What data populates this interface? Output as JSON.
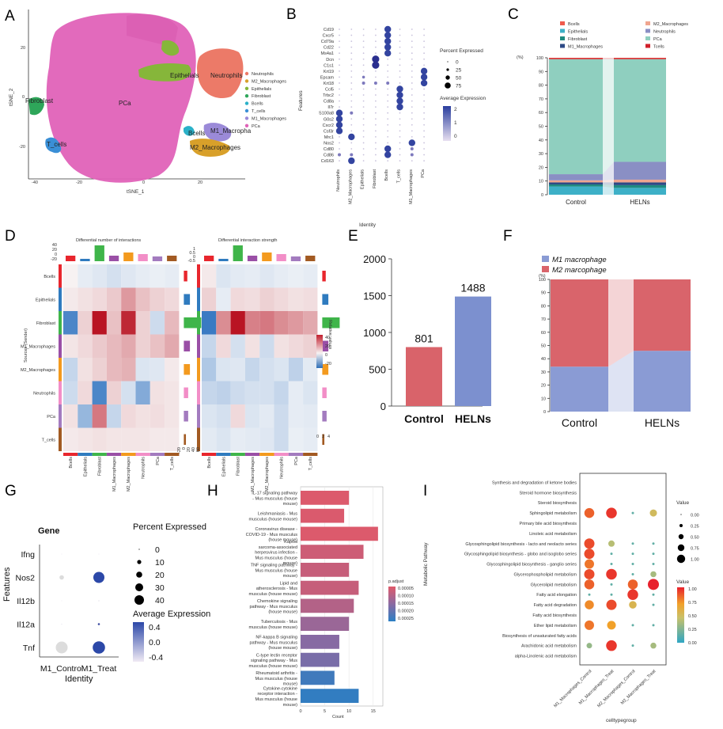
{
  "panels": {
    "A": {
      "label": "A",
      "xlabel": "tSNE_1",
      "ylabel": "tSNE_2",
      "x_ticks": [
        "-40",
        "-20",
        "0",
        "20"
      ],
      "y_ticks": [
        "20",
        "0",
        "-20"
      ],
      "cluster_labels": [
        "Epithelials",
        "Neutrophils",
        "Fibroblast",
        "PCa",
        "T_cells",
        "Bcells",
        "M1_Macropha",
        "M2_Macrophages"
      ],
      "legend": [
        {
          "name": "Neutrophils",
          "color": "#ec7a68"
        },
        {
          "name": "M2_Macrophages",
          "color": "#d8a02a"
        },
        {
          "name": "Epithelials",
          "color": "#86b63a"
        },
        {
          "name": "Fibroblast",
          "color": "#2ea65a"
        },
        {
          "name": "Bcells",
          "color": "#2ab1c8"
        },
        {
          "name": "T_cells",
          "color": "#3a8fd6"
        },
        {
          "name": "M1_Macrophages",
          "color": "#9b8ad8"
        },
        {
          "name": "PCa",
          "color": "#e062b8"
        }
      ]
    },
    "B": {
      "label": "B",
      "ylabel": "Features",
      "xlabel": "Identity",
      "features": [
        "Cd19",
        "Cxcr5",
        "Cd79a",
        "Cd22",
        "Ms4a1",
        "Dcn",
        "C1s1",
        "Krt19",
        "Epcam",
        "Krt18",
        "Ccl5",
        "Trbc2",
        "Cd8a",
        "Il7r",
        "S100a8",
        "G0s2",
        "Cxcr2",
        "Csf3r",
        "Mrc1",
        "Nos2",
        "Cd80",
        "Cd86",
        "Cd163"
      ],
      "identities": [
        "Neutrophils",
        "M2_Macrophages",
        "Epithelials",
        "Fibroblast",
        "Bcells",
        "T_cells",
        "M1_Macrophages",
        "PCa"
      ],
      "pct_title": "Percent Expressed",
      "pct_ticks": [
        "0",
        "25",
        "50",
        "75"
      ],
      "avg_title": "Average Expression",
      "avg_ticks": [
        "2",
        "1",
        "0"
      ]
    },
    "C": {
      "label": "C",
      "unit": "(%)",
      "y_ticks": [
        "100",
        "90",
        "80",
        "70",
        "60",
        "50",
        "40",
        "30",
        "20",
        "10",
        "0"
      ],
      "legend": [
        {
          "name": "Bcells",
          "color": "#ef5a4c"
        },
        {
          "name": "Epithelials",
          "color": "#3db0c7"
        },
        {
          "name": "Fibroblast",
          "color": "#1f8a80"
        },
        {
          "name": "M1_Macrophages",
          "color": "#2d4a86"
        },
        {
          "name": "M2_Macrophages",
          "color": "#f0a58f"
        },
        {
          "name": "Neutrophils",
          "color": "#8a8fc4"
        },
        {
          "name": "PCa",
          "color": "#8fcfbf"
        },
        {
          "name": "Tcells",
          "color": "#d0202a"
        }
      ],
      "chart_data": {
        "type": "bar",
        "stacked": true,
        "categories": [
          "Control",
          "HELNs"
        ],
        "series": [
          {
            "name": "Epithelials",
            "values": [
              6,
              5
            ]
          },
          {
            "name": "Fibroblast",
            "values": [
              1.5,
              2
            ]
          },
          {
            "name": "M1_Macrophages",
            "values": [
              1.5,
              2
            ]
          },
          {
            "name": "M2_Macrophages",
            "values": [
              1.5,
              2
            ]
          },
          {
            "name": "Neutrophils",
            "values": [
              4.5,
              13
            ]
          },
          {
            "name": "PCa",
            "values": [
              84,
              75
            ]
          },
          {
            "name": "Tcells",
            "values": [
              0.7,
              0.7
            ]
          },
          {
            "name": "Bcells",
            "values": [
              0.3,
              0.3
            ]
          }
        ],
        "ylim": [
          0,
          100
        ]
      }
    },
    "D": {
      "label": "D",
      "title_left": "Differential number of interactions",
      "title_right": "Differential interaction strength",
      "ylabel": "Sources (Sender)",
      "groups": [
        "Bcells",
        "Epithelials",
        "Fibroblast",
        "M1_Macrophages",
        "M2_Macrophages",
        "Neutrophils",
        "PCa",
        "T_cells"
      ],
      "group_colors": [
        "#e8262d",
        "#2f7bbf",
        "#3fb54a",
        "#9a4fa6",
        "#f39a1e",
        "#f28ec7",
        "#a37bbf",
        "#a25a22"
      ],
      "top_ticks_left": [
        "40",
        "20",
        "0",
        "-20"
      ],
      "top_ticks_right": [
        "1",
        "0.5",
        "0",
        "-0.5"
      ],
      "colorbar_title": "Relative values",
      "colorbar_ticks": [
        "40",
        "20",
        "0",
        "-20"
      ],
      "right_axis_left": [
        "-20",
        "0",
        "20",
        "40",
        "60"
      ],
      "right_axis_right": [
        "0",
        "2",
        "4"
      ],
      "heat_left": [
        [
          0,
          -3,
          -5,
          -8,
          -5,
          -3,
          -2,
          -3
        ],
        [
          2,
          4,
          6,
          10,
          22,
          12,
          8,
          6
        ],
        [
          -45,
          8,
          55,
          12,
          50,
          8,
          -10,
          14
        ],
        [
          3,
          6,
          10,
          14,
          18,
          8,
          12,
          18
        ],
        [
          -12,
          4,
          8,
          14,
          16,
          -6,
          -5,
          2
        ],
        [
          -10,
          6,
          -45,
          8,
          -8,
          -30,
          4,
          3
        ],
        [
          4,
          -25,
          30,
          -12,
          6,
          4,
          5,
          3
        ],
        [
          2,
          3,
          4,
          3,
          3,
          3,
          2,
          2
        ]
      ],
      "heat_right": [
        [
          2,
          -6,
          -4,
          -3,
          -5,
          -3,
          -2,
          -3
        ],
        [
          8,
          -3,
          6,
          5,
          8,
          6,
          4,
          5
        ],
        [
          -50,
          25,
          55,
          28,
          30,
          25,
          22,
          18
        ],
        [
          -12,
          6,
          -8,
          4,
          -10,
          4,
          6,
          8
        ],
        [
          -18,
          -6,
          -5,
          -12,
          -8,
          -6,
          -14,
          -4
        ],
        [
          -12,
          -14,
          -10,
          -8,
          -8,
          -12,
          -3,
          -6
        ],
        [
          -6,
          -8,
          6,
          -6,
          -4,
          -10,
          -3,
          -4
        ],
        [
          -4,
          -6,
          -3,
          -4,
          -5,
          -10,
          -2,
          -3
        ]
      ]
    },
    "E": {
      "label": "E",
      "y_ticks": [
        "2000",
        "1500",
        "1000",
        "500",
        "0"
      ],
      "chart_data": {
        "type": "bar",
        "categories": [
          "Control",
          "HELNs"
        ],
        "values": [
          801,
          1488
        ],
        "value_labels": [
          "801",
          "1488"
        ],
        "colors": [
          "#d9636a",
          "#7c90cf"
        ],
        "ylim": [
          0,
          2000
        ]
      }
    },
    "F": {
      "label": "F",
      "unit": "(%)",
      "y_ticks": [
        "100",
        "90",
        "80",
        "70",
        "60",
        "50",
        "40",
        "30",
        "20",
        "10",
        "0"
      ],
      "legend": [
        {
          "name": "M1 macrophage",
          "color": "#8a9bd4"
        },
        {
          "name": "M2 marcophage",
          "color": "#d9646b"
        }
      ],
      "chart_data": {
        "type": "bar",
        "stacked": true,
        "categories": [
          "Control",
          "HELNs"
        ],
        "series": [
          {
            "name": "M1 macrophage",
            "values": [
              34,
              46
            ]
          },
          {
            "name": "M2 marcophage",
            "values": [
              66,
              54
            ]
          }
        ],
        "ylim": [
          0,
          100
        ]
      }
    },
    "G": {
      "label": "G",
      "gene_title": "Gene",
      "features": [
        "Ifng",
        "Nos2",
        "Il12b",
        "Il12a",
        "Tnf"
      ],
      "identities": [
        "M1_Control",
        "M1_Treat"
      ],
      "xlabel": "Identity",
      "ylabel": "Features",
      "pct_title": "Percent Expressed",
      "pct_ticks": [
        "0",
        "10",
        "20",
        "30",
        "40"
      ],
      "avg_title": "Average Expression",
      "avg_ticks": [
        "0.4",
        "0.0",
        "-0.4"
      ]
    },
    "H": {
      "label": "H",
      "xlabel": "Count",
      "x_ticks": [
        "0",
        "5",
        "10",
        "15"
      ],
      "legend_title": "p.adjust",
      "legend_ticks": [
        "0.00005",
        "0.00010",
        "0.00015",
        "0.00020",
        "0.00025"
      ],
      "chart_data": {
        "type": "bar",
        "orientation": "horizontal",
        "categories": [
          "IL-17 signaling pathway - Mus musculus (house mouse)",
          "Leishmaniasis - Mus musculus (house mouse)",
          "Coronavirus disease - COVID-19 - Mus musculus (house mouse)",
          "Kaposi sarcoma-associated herpesvirus infection - Mus musculus (house mouse)",
          "TNF signaling pathway - Mus musculus (house mouse)",
          "Lipid and atherosclerosis - Mus musculus (house mouse)",
          "Chemokine signaling pathway - Mus musculus (house mouse)",
          "Tuberculosis - Mus musculus (house mouse)",
          "NF-kappa B signaling pathway - Mus musculus (house mouse)",
          "C-type lectin receptor signaling pathway - Mus musculus (house mouse)",
          "Rheumatoid arthritis - Mus musculus (house mouse)",
          "Cytokine-cytokine receptor interaction - Mus musculus (house mouse)"
        ],
        "values": [
          10,
          9,
          16,
          13,
          10,
          12,
          11,
          10,
          8,
          8,
          7,
          12
        ],
        "p_adjust": [
          5e-06,
          8e-06,
          6e-06,
          3e-05,
          4e-05,
          4e-05,
          7e-05,
          0.00011,
          0.00014,
          0.00016,
          0.00024,
          0.00026
        ],
        "xlim": [
          0,
          17
        ]
      }
    },
    "I": {
      "label": "I",
      "ylabel": "Metabolic Pathway",
      "xlabel": "celltypegroup",
      "groups": [
        "M1_Macrophages_Control",
        "M1_Macrophages_Treat",
        "M2_Macrophages_Control",
        "M2_Macrophages_Treat"
      ],
      "pathways": [
        "Synthesis and degradation of ketone bodies",
        "Steroid hormone biosynthesis",
        "Steroid biosynthesis",
        "Sphingolipid metabolism",
        "Primary bile acid biosynthesis",
        "Linoleic acid metabolism",
        "Glycosphingolipid biosynthesis - lacto and neolacto series",
        "Glycosphingolipid biosynthesis - globo and isoglobo series",
        "Glycosphingolipid biosynthesis - ganglio series",
        "Glycerophospholipid metabolism",
        "Glycerolipid metabolism",
        "Fatty acid elongation",
        "Fatty acid degradation",
        "Fatty acid biosynthesis",
        "Ether lipid metabolism",
        "Biosynthesis of unsaturated fatty acids",
        "Arachidonic acid metabolism",
        "alpha-Linolenic acid metabolism"
      ],
      "size_title": "Value",
      "size_ticks": [
        "0.00",
        "0.25",
        "0.50",
        "0.75",
        "1.00"
      ],
      "color_title": "Value",
      "color_ticks": [
        "1.00",
        "0.75",
        "0.50",
        "0.25",
        "0.00"
      ],
      "values": [
        [
          0,
          0,
          0,
          0
        ],
        [
          0,
          0,
          0,
          0
        ],
        [
          0,
          0,
          0,
          0
        ],
        [
          0.85,
          0.95,
          0.15,
          0.5
        ],
        [
          0,
          0,
          0,
          0
        ],
        [
          0,
          0,
          0,
          0
        ],
        [
          0.9,
          0.4,
          0.15,
          0.15
        ],
        [
          0.9,
          0.15,
          0.15,
          0.15
        ],
        [
          0.8,
          0.15,
          0.15,
          0.15
        ],
        [
          0.9,
          0.95,
          0.15,
          0.35
        ],
        [
          0.85,
          0.15,
          0.85,
          1.0
        ],
        [
          0.15,
          0.15,
          0.95,
          0.15
        ],
        [
          0.75,
          0.9,
          0.55,
          0.15
        ],
        [
          0,
          0,
          0,
          0
        ],
        [
          0.8,
          0.7,
          0.15,
          0.15
        ],
        [
          0,
          0,
          0,
          0
        ],
        [
          0.3,
          0.95,
          0.15,
          0.35
        ],
        [
          0,
          0,
          0,
          0
        ]
      ]
    }
  }
}
